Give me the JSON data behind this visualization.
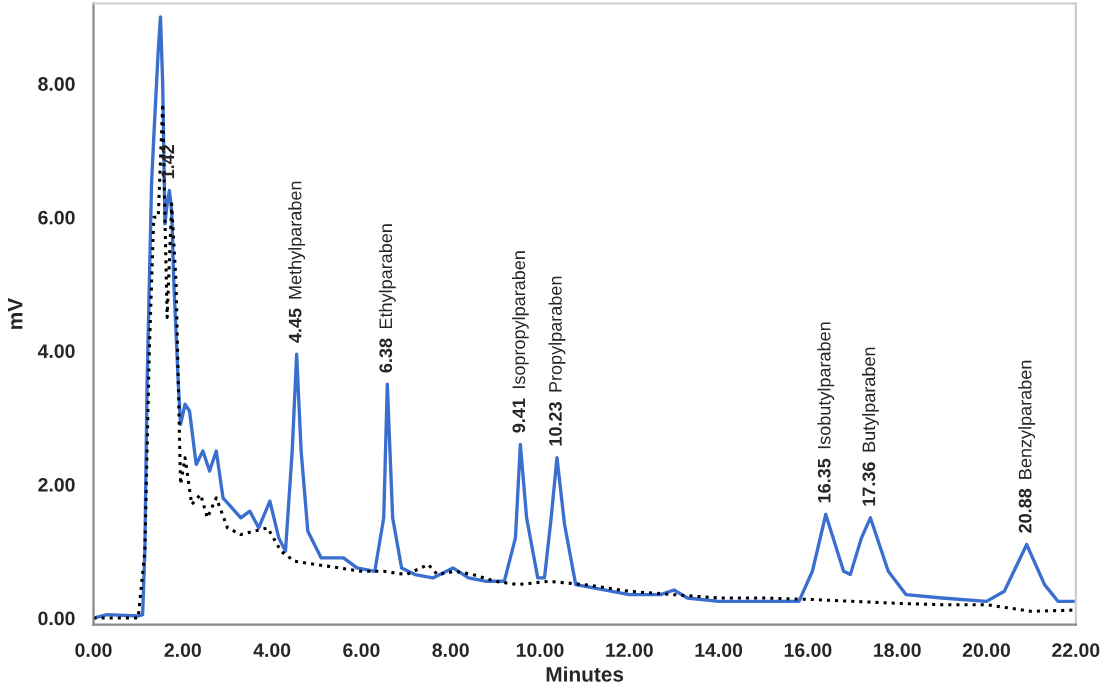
{
  "chart_data": {
    "type": "line",
    "xlabel": "Minutes",
    "ylabel": "mV",
    "xlim": [
      0,
      22
    ],
    "ylim": [
      -0.1,
      9.2
    ],
    "xticks": [
      {
        "value": 0,
        "label": "0.00"
      },
      {
        "value": 2,
        "label": "2.00"
      },
      {
        "value": 4,
        "label": "4.00"
      },
      {
        "value": 6,
        "label": "6.00"
      },
      {
        "value": 8,
        "label": "8.00"
      },
      {
        "value": 10,
        "label": "10.00"
      },
      {
        "value": 12,
        "label": "12.00"
      },
      {
        "value": 14,
        "label": "14.00"
      },
      {
        "value": 16,
        "label": "16.00"
      },
      {
        "value": 18,
        "label": "18.00"
      },
      {
        "value": 20,
        "label": "20.00"
      },
      {
        "value": 22,
        "label": "22.00"
      }
    ],
    "yticks": [
      {
        "value": 0,
        "label": "0.00"
      },
      {
        "value": 2,
        "label": "2.00"
      },
      {
        "value": 4,
        "label": "4.00"
      },
      {
        "value": 6,
        "label": "6.00"
      },
      {
        "value": 8,
        "label": "8.00"
      }
    ],
    "grid": false,
    "legend": false,
    "marker": "none",
    "series": [
      {
        "color": "#3a6fd0",
        "line_style": "solid",
        "x": [
          0,
          0.3,
          1.0,
          1.1,
          1.15,
          1.2,
          1.3,
          1.35,
          1.45,
          1.5,
          1.55,
          1.6,
          1.65,
          1.7,
          1.75,
          1.8,
          1.9,
          1.95,
          2.05,
          2.15,
          2.3,
          2.45,
          2.6,
          2.75,
          2.9,
          3.1,
          3.3,
          3.5,
          3.7,
          3.95,
          4.15,
          4.3,
          4.45,
          4.55,
          4.65,
          4.8,
          5.1,
          5.4,
          5.6,
          5.9,
          6.3,
          6.5,
          6.58,
          6.7,
          6.9,
          7.2,
          7.6,
          8.05,
          8.4,
          8.8,
          9.2,
          9.45,
          9.56,
          9.7,
          9.95,
          10.1,
          10.25,
          10.38,
          10.55,
          10.8,
          11.2,
          12.0,
          12.7,
          13.0,
          13.3,
          14.0,
          15.0,
          15.8,
          16.1,
          16.4,
          16.8,
          16.95,
          17.2,
          17.4,
          17.8,
          18.2,
          19.0,
          20.0,
          20.4,
          20.9,
          21.3,
          21.6,
          22.0
        ],
        "values": [
          0.0,
          0.05,
          0.03,
          0.05,
          1.0,
          3.5,
          6.5,
          7.2,
          8.5,
          9.0,
          8.0,
          5.9,
          6.2,
          6.4,
          6.1,
          5.0,
          3.5,
          2.9,
          3.2,
          3.1,
          2.3,
          2.5,
          2.2,
          2.5,
          1.8,
          1.65,
          1.5,
          1.6,
          1.35,
          1.75,
          1.2,
          1.0,
          2.5,
          3.95,
          2.5,
          1.3,
          0.9,
          0.9,
          0.9,
          0.75,
          0.7,
          1.5,
          3.5,
          1.5,
          0.75,
          0.65,
          0.6,
          0.75,
          0.6,
          0.55,
          0.55,
          1.2,
          2.6,
          1.5,
          0.6,
          0.6,
          1.5,
          2.4,
          1.4,
          0.5,
          0.45,
          0.35,
          0.35,
          0.42,
          0.3,
          0.25,
          0.25,
          0.25,
          0.7,
          1.55,
          0.7,
          0.65,
          1.2,
          1.5,
          0.7,
          0.35,
          0.3,
          0.25,
          0.4,
          1.1,
          0.5,
          0.25,
          0.25
        ]
      },
      {
        "color": "#000000",
        "line_style": "dotted",
        "x": [
          0,
          1.0,
          1.15,
          1.25,
          1.35,
          1.45,
          1.55,
          1.6,
          1.65,
          1.75,
          1.85,
          1.95,
          2.05,
          2.2,
          2.4,
          2.55,
          2.75,
          3.0,
          3.3,
          3.6,
          3.9,
          4.2,
          4.5,
          5.0,
          5.5,
          6.0,
          6.5,
          7.0,
          7.5,
          7.7,
          8.1,
          8.5,
          9.0,
          9.5,
          10.2,
          11.0,
          12.0,
          13.0,
          14.0,
          15.0,
          16.0,
          17.0,
          18.0,
          19.0,
          20.0,
          21.0,
          22.0
        ],
        "values": [
          0,
          0,
          1.0,
          4.0,
          6.0,
          6.0,
          7.7,
          6.0,
          4.5,
          6.2,
          5.0,
          2.0,
          2.4,
          1.7,
          1.85,
          1.5,
          1.8,
          1.35,
          1.25,
          1.3,
          1.35,
          1.0,
          0.85,
          0.8,
          0.75,
          0.7,
          0.7,
          0.65,
          0.8,
          0.65,
          0.7,
          0.65,
          0.55,
          0.5,
          0.55,
          0.5,
          0.4,
          0.35,
          0.3,
          0.3,
          0.28,
          0.25,
          0.22,
          0.2,
          0.2,
          0.1,
          0.12
        ]
      }
    ],
    "annotations": [
      {
        "text": "1.42",
        "x": 1.7,
        "y": 6.4
      },
      {
        "text": "4.45",
        "x": 4.55,
        "y": 3.95
      },
      "Methylparaben",
      {
        "text": "6.38",
        "x": 6.58,
        "y": 3.5
      },
      "Ethylparaben",
      {
        "text": "9.41",
        "x": 9.56,
        "y": 2.6
      },
      "Isopropylparaben",
      {
        "text": "10.23",
        "x": 10.38,
        "y": 2.4
      },
      "Propylparaben",
      {
        "text": "16.35",
        "x": 16.4,
        "y": 1.55
      },
      "Isobutylparaben",
      {
        "text": "17.36",
        "x": 17.4,
        "y": 1.5
      },
      "Butylparaben",
      {
        "text": "20.88",
        "x": 20.9,
        "y": 1.1
      },
      "Benzylparaben"
    ]
  }
}
